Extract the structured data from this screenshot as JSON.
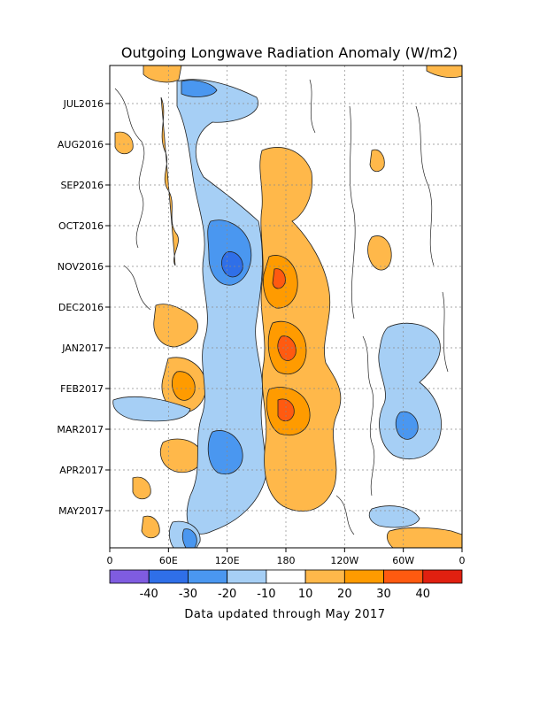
{
  "chart_data": {
    "type": "heatmap",
    "title": "Outgoing Longwave Radiation Anomaly (W/m2)",
    "xlabel": "",
    "ylabel": "",
    "x_ticks": [
      "0",
      "60E",
      "120E",
      "180",
      "120W",
      "60W",
      "0"
    ],
    "x_tick_lon_east": [
      0,
      60,
      120,
      180,
      240,
      300,
      360
    ],
    "xlim": [
      0,
      360
    ],
    "y_ticks": [
      "JUL2016",
      "AUG2016",
      "SEP2016",
      "OCT2016",
      "NOV2016",
      "DEC2016",
      "JAN2017",
      "FEB2017",
      "MAR2017",
      "APR2017",
      "MAY2017"
    ],
    "y_direction": "time increases downward",
    "grid": true,
    "colorbar": {
      "orientation": "horizontal",
      "placement": "bottom",
      "levels": [
        "-40",
        "-30",
        "-20",
        "-10",
        "10",
        "20",
        "30",
        "40"
      ],
      "colors": [
        "#7f5ce0",
        "#2f6fe8",
        "#4a97f0",
        "#a6cff5",
        "#ffffff",
        "#ffb84a",
        "#ff9b00",
        "#ff5a10",
        "#e02010"
      ]
    },
    "footnote": "Data updated through May 2017"
  }
}
